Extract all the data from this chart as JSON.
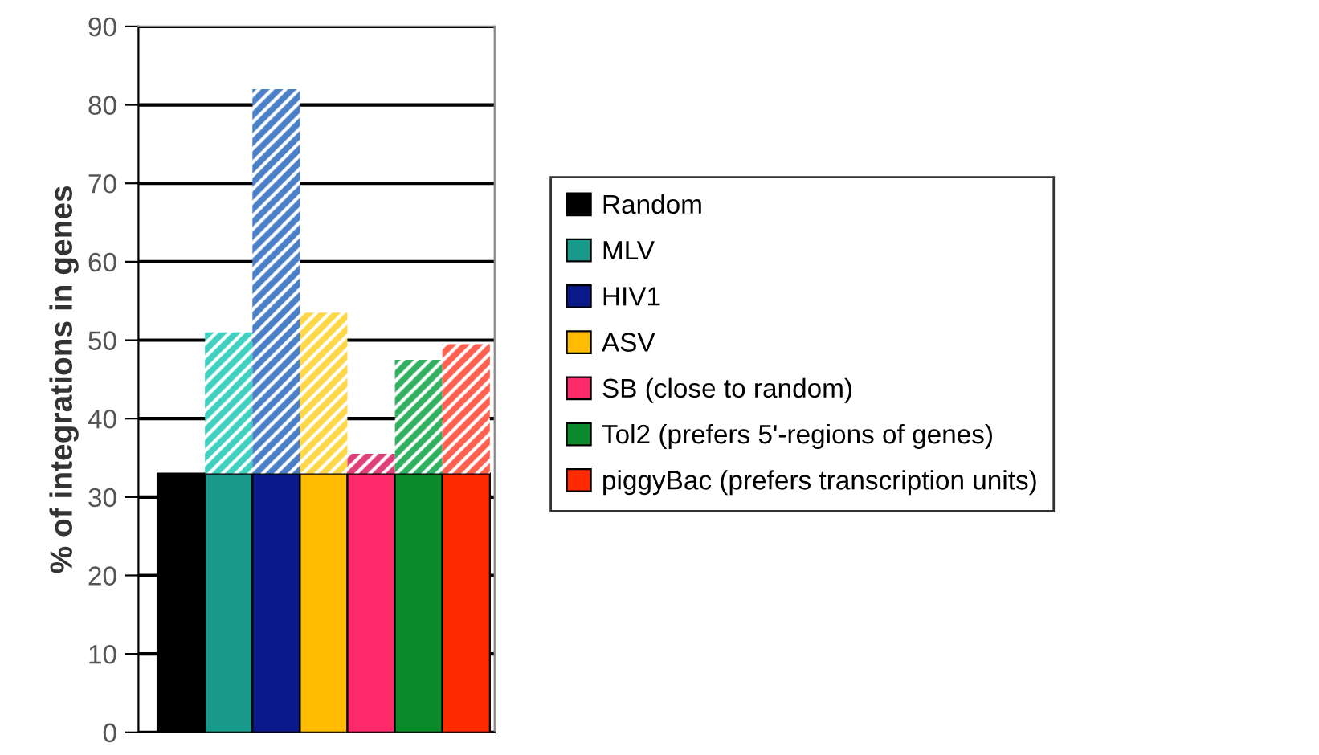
{
  "chart_data": {
    "type": "bar",
    "ylabel": "% of integrations in genes",
    "categories": [
      null,
      null,
      null,
      null,
      null,
      null,
      null
    ],
    "stacked": true,
    "series": [
      {
        "name": "Random",
        "color": "#000000",
        "values": [
          33,
          null,
          null,
          null,
          null,
          null,
          null
        ]
      },
      {
        "name": "MLV",
        "color": "#1a9a8a",
        "values": [
          null,
          33,
          null,
          null,
          null,
          null,
          null
        ]
      },
      {
        "name": "HIV1",
        "color": "#0a1a8a",
        "values": [
          null,
          null,
          33,
          null,
          null,
          null,
          null
        ]
      },
      {
        "name": "ASV",
        "color": "#ffbb00",
        "values": [
          null,
          null,
          null,
          33,
          null,
          null,
          null
        ]
      },
      {
        "name": "SB (close to random)",
        "color": "#ff2a6a",
        "values": [
          null,
          null,
          null,
          null,
          33,
          null,
          null
        ]
      },
      {
        "name": "Tol2 (prefers 5'-regions of genes)",
        "color": "#0a8a2a",
        "values": [
          null,
          null,
          null,
          null,
          null,
          33,
          null
        ]
      },
      {
        "name": "piggyBac (prefers transcription units)",
        "color": "#ff2a00",
        "values": [
          null,
          null,
          null,
          null,
          null,
          null,
          33
        ]
      },
      {
        "colors": [
          "#000000",
          "#40d0c0",
          "#4a80c8",
          "#ffd84a",
          "#e0407a",
          "#30b060",
          "#ff6050"
        ],
        "values": [
          null,
          18,
          49,
          20.5,
          2.5,
          14.5,
          16.5
        ]
      }
    ],
    "ylim": [
      0,
      90
    ],
    "yticks": [
      0,
      10,
      20,
      30,
      40,
      50,
      60,
      70,
      80,
      90
    ],
    "grid": "y",
    "legend": "right",
    "tick_labels": "y"
  }
}
